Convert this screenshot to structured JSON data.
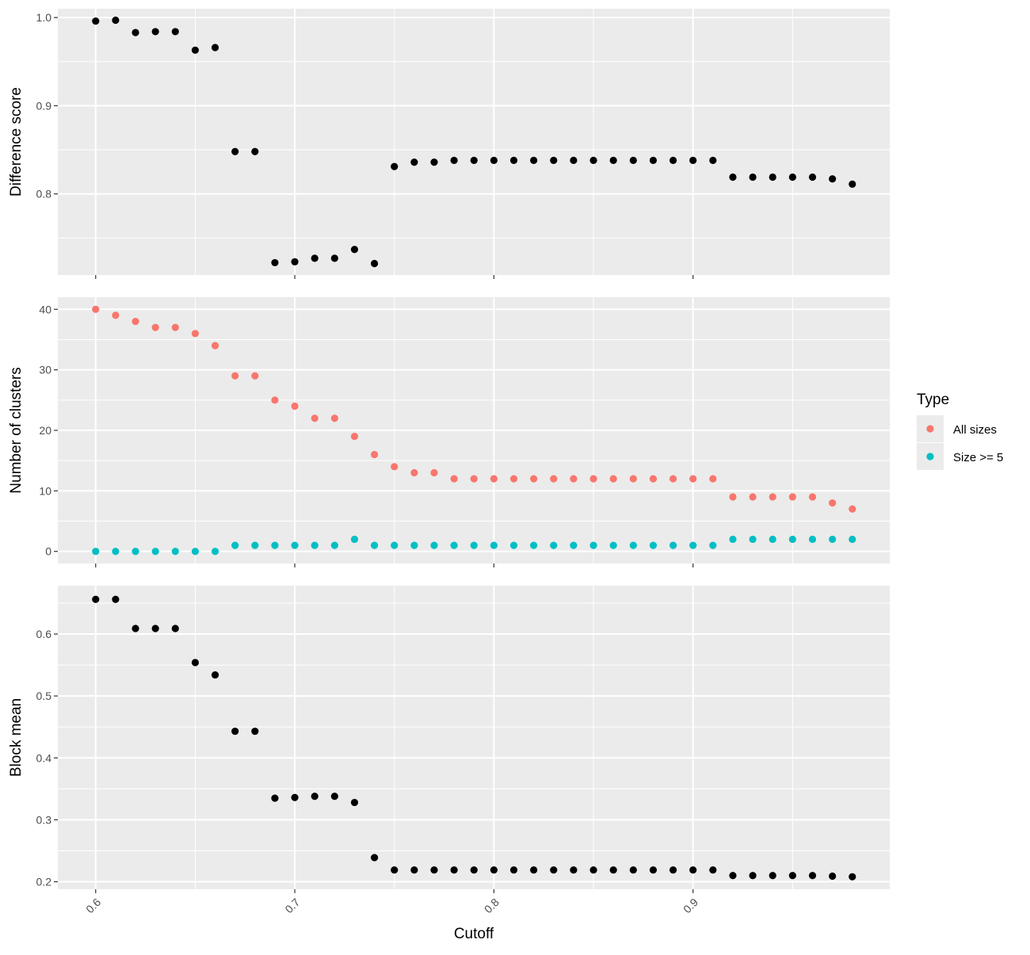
{
  "chart_data": [
    {
      "type": "scatter",
      "title": "",
      "xlabel": "",
      "ylabel": "Difference score",
      "xlim": [
        0.581,
        0.9988
      ],
      "ylim": [
        0.708,
        1.01
      ],
      "y_major_ticks": [
        0.8,
        0.9,
        1.0
      ],
      "y_tick_labels": [
        "0.8",
        "0.9",
        "1.0"
      ],
      "y_minor_ticks": [
        0.75,
        0.85,
        0.95
      ],
      "x_major_ticks": [
        0.6,
        0.7,
        0.8,
        0.9
      ],
      "x_minor_ticks": [
        0.65,
        0.75,
        0.85,
        0.95
      ],
      "grid": true,
      "point_color": "#000000",
      "x": [
        0.6,
        0.61,
        0.62,
        0.63,
        0.64,
        0.65,
        0.66,
        0.67,
        0.68,
        0.69,
        0.7,
        0.71,
        0.72,
        0.73,
        0.74,
        0.75,
        0.76,
        0.77,
        0.78,
        0.79,
        0.8,
        0.81,
        0.82,
        0.83,
        0.84,
        0.85,
        0.86,
        0.87,
        0.88,
        0.89,
        0.9,
        0.91,
        0.92,
        0.93,
        0.94,
        0.95,
        0.96,
        0.97,
        0.98
      ],
      "y": [
        0.996,
        0.997,
        0.983,
        0.984,
        0.984,
        0.963,
        0.966,
        0.848,
        0.848,
        0.722,
        0.723,
        0.727,
        0.727,
        0.737,
        0.721,
        0.831,
        0.836,
        0.836,
        0.838,
        0.838,
        0.838,
        0.838,
        0.838,
        0.838,
        0.838,
        0.838,
        0.838,
        0.838,
        0.838,
        0.838,
        0.838,
        0.838,
        0.819,
        0.819,
        0.819,
        0.819,
        0.819,
        0.817,
        0.811
      ]
    },
    {
      "type": "scatter",
      "title": "",
      "xlabel": "",
      "ylabel": "Number of clusters",
      "xlim": [
        0.581,
        0.9988
      ],
      "ylim": [
        -2,
        42
      ],
      "y_major_ticks": [
        0,
        10,
        20,
        30,
        40
      ],
      "y_tick_labels": [
        "0",
        "10",
        "20",
        "30",
        "40"
      ],
      "y_minor_ticks": [
        5,
        15,
        25,
        35
      ],
      "x_major_ticks": [
        0.6,
        0.7,
        0.8,
        0.9
      ],
      "x_minor_ticks": [
        0.65,
        0.75,
        0.85,
        0.95
      ],
      "grid": true,
      "x": [
        0.6,
        0.61,
        0.62,
        0.63,
        0.64,
        0.65,
        0.66,
        0.67,
        0.68,
        0.69,
        0.7,
        0.71,
        0.72,
        0.73,
        0.74,
        0.75,
        0.76,
        0.77,
        0.78,
        0.79,
        0.8,
        0.81,
        0.82,
        0.83,
        0.84,
        0.85,
        0.86,
        0.87,
        0.88,
        0.89,
        0.9,
        0.91,
        0.92,
        0.93,
        0.94,
        0.95,
        0.96,
        0.97,
        0.98
      ],
      "series": [
        {
          "name": "All sizes",
          "color": "#F8766D",
          "values": [
            40,
            39,
            38,
            37,
            37,
            36,
            34,
            29,
            29,
            25,
            24,
            22,
            22,
            19,
            16,
            14,
            13,
            13,
            12,
            12,
            12,
            12,
            12,
            12,
            12,
            12,
            12,
            12,
            12,
            12,
            12,
            12,
            9,
            9,
            9,
            9,
            9,
            8,
            7
          ]
        },
        {
          "name": "Size >= 5",
          "color": "#00BFC4",
          "values": [
            0,
            0,
            0,
            0,
            0,
            0,
            0,
            1,
            1,
            1,
            1,
            1,
            1,
            2,
            1,
            1,
            1,
            1,
            1,
            1,
            1,
            1,
            1,
            1,
            1,
            1,
            1,
            1,
            1,
            1,
            1,
            1,
            2,
            2,
            2,
            2,
            2,
            2,
            2
          ]
        }
      ],
      "legend": {
        "title": "Type",
        "placement": "right"
      }
    },
    {
      "type": "scatter",
      "title": "",
      "xlabel": "Cutoff",
      "ylabel": "Block mean",
      "xlim": [
        0.581,
        0.9988
      ],
      "ylim": [
        0.1879,
        0.6781
      ],
      "y_major_ticks": [
        0.2,
        0.3,
        0.4,
        0.5,
        0.6
      ],
      "y_tick_labels": [
        "0.2",
        "0.3",
        "0.4",
        "0.5",
        "0.6"
      ],
      "y_minor_ticks": [
        0.25,
        0.35,
        0.45,
        0.55,
        0.65
      ],
      "x_major_ticks": [
        0.6,
        0.7,
        0.8,
        0.9
      ],
      "x_tick_labels": [
        "0.6",
        "0.7",
        "0.8",
        "0.9"
      ],
      "x_minor_ticks": [
        0.65,
        0.75,
        0.85,
        0.95
      ],
      "grid": true,
      "point_color": "#000000",
      "x": [
        0.6,
        0.61,
        0.62,
        0.63,
        0.64,
        0.65,
        0.66,
        0.67,
        0.68,
        0.69,
        0.7,
        0.71,
        0.72,
        0.73,
        0.74,
        0.75,
        0.76,
        0.77,
        0.78,
        0.79,
        0.8,
        0.81,
        0.82,
        0.83,
        0.84,
        0.85,
        0.86,
        0.87,
        0.88,
        0.89,
        0.9,
        0.91,
        0.92,
        0.93,
        0.94,
        0.95,
        0.96,
        0.97,
        0.98
      ],
      "y": [
        0.656,
        0.656,
        0.609,
        0.609,
        0.609,
        0.554,
        0.534,
        0.443,
        0.443,
        0.335,
        0.336,
        0.338,
        0.338,
        0.328,
        0.239,
        0.219,
        0.219,
        0.219,
        0.219,
        0.219,
        0.219,
        0.219,
        0.219,
        0.219,
        0.219,
        0.219,
        0.219,
        0.219,
        0.219,
        0.219,
        0.219,
        0.219,
        0.21,
        0.21,
        0.21,
        0.21,
        0.21,
        0.209,
        0.208
      ]
    }
  ]
}
